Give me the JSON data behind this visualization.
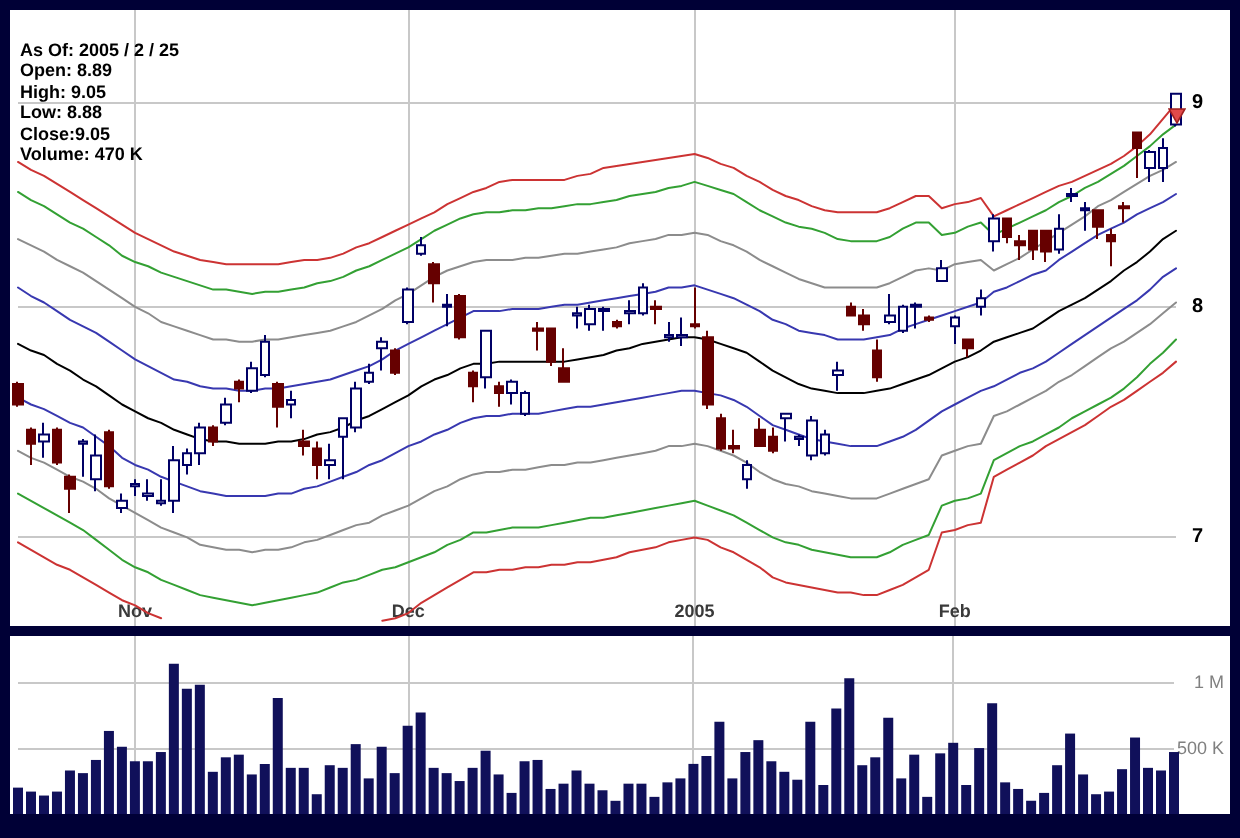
{
  "chart_data": [
    {
      "type": "candlestick",
      "categories": [
        null,
        null,
        null,
        null,
        null,
        null,
        null,
        null,
        null,
        "Nov",
        null,
        null,
        null,
        null,
        null,
        null,
        null,
        null,
        null,
        null,
        null,
        null,
        null,
        null,
        null,
        null,
        null,
        null,
        null,
        null,
        "Dec",
        null,
        null,
        null,
        null,
        null,
        null,
        null,
        null,
        null,
        null,
        null,
        null,
        null,
        null,
        null,
        null,
        null,
        null,
        null,
        null,
        null,
        "2005",
        null,
        null,
        null,
        null,
        null,
        null,
        null,
        null,
        null,
        null,
        null,
        null,
        null,
        null,
        null,
        null,
        null,
        null,
        null,
        "Feb",
        null,
        null,
        null,
        null,
        null,
        null,
        null,
        null,
        null,
        null,
        null,
        null,
        null,
        null,
        null,
        null,
        null
      ],
      "ohlc": [
        [
          7.65,
          7.66,
          7.55,
          7.56
        ],
        [
          7.45,
          7.46,
          7.3,
          7.39
        ],
        [
          7.4,
          7.48,
          7.33,
          7.43
        ],
        [
          7.45,
          7.46,
          7.3,
          7.31
        ],
        [
          7.25,
          7.26,
          7.1,
          7.2
        ],
        [
          7.39,
          7.41,
          7.25,
          7.4
        ],
        [
          7.24,
          7.43,
          7.19,
          7.34
        ],
        [
          7.44,
          7.45,
          7.2,
          7.21
        ],
        [
          7.12,
          7.18,
          7.1,
          7.15
        ],
        [
          7.21,
          7.24,
          7.17,
          7.22
        ],
        [
          7.17,
          7.24,
          7.15,
          7.18
        ],
        [
          7.14,
          7.24,
          7.13,
          7.15
        ],
        [
          7.15,
          7.38,
          7.1,
          7.32
        ],
        [
          7.3,
          7.37,
          7.26,
          7.35
        ],
        [
          7.35,
          7.48,
          7.3,
          7.46
        ],
        [
          7.46,
          7.47,
          7.38,
          7.4
        ],
        [
          7.48,
          7.59,
          7.47,
          7.56
        ],
        [
          7.66,
          7.67,
          7.57,
          7.63
        ],
        [
          7.62,
          7.75,
          7.61,
          7.72
        ],
        [
          7.69,
          7.87,
          7.68,
          7.84
        ],
        [
          7.65,
          7.66,
          7.46,
          7.55
        ],
        [
          7.56,
          7.62,
          7.5,
          7.58
        ],
        [
          7.4,
          7.45,
          7.34,
          7.38
        ],
        [
          7.37,
          7.4,
          7.24,
          7.3
        ],
        [
          7.3,
          7.39,
          7.24,
          7.32
        ],
        [
          7.42,
          7.5,
          7.24,
          7.5
        ],
        [
          7.46,
          7.66,
          7.44,
          7.63
        ],
        [
          7.66,
          7.74,
          7.65,
          7.7
        ],
        [
          7.81,
          7.86,
          7.71,
          7.84
        ],
        [
          7.8,
          7.81,
          7.69,
          7.7
        ],
        [
          7.93,
          8.09,
          7.92,
          8.08
        ],
        [
          8.25,
          8.33,
          8.24,
          8.29
        ],
        [
          8.2,
          8.21,
          8.02,
          8.11
        ],
        [
          8.0,
          8.06,
          7.91,
          8.01
        ],
        [
          8.05,
          8.06,
          7.85,
          7.86
        ],
        [
          7.7,
          7.71,
          7.57,
          7.64
        ],
        [
          7.68,
          7.89,
          7.63,
          7.89
        ],
        [
          7.64,
          7.66,
          7.55,
          7.61
        ],
        [
          7.61,
          7.67,
          7.56,
          7.66
        ],
        [
          7.52,
          7.62,
          7.51,
          7.61
        ],
        [
          7.9,
          7.93,
          7.8,
          7.89
        ],
        [
          7.9,
          7.9,
          7.73,
          7.75
        ],
        [
          7.72,
          7.81,
          7.66,
          7.66
        ],
        [
          7.96,
          8.0,
          7.9,
          7.97
        ],
        [
          7.92,
          8.01,
          7.89,
          7.99
        ],
        [
          7.98,
          8.0,
          7.89,
          7.99
        ],
        [
          7.93,
          7.94,
          7.9,
          7.91
        ],
        [
          7.97,
          8.03,
          7.92,
          7.98
        ],
        [
          7.97,
          8.11,
          7.96,
          8.09
        ],
        [
          8.0,
          8.03,
          7.92,
          7.99
        ],
        [
          7.86,
          7.93,
          7.84,
          7.87
        ],
        [
          7.86,
          7.95,
          7.82,
          7.87
        ],
        [
          7.92,
          8.09,
          7.9,
          7.91
        ],
        [
          7.86,
          7.89,
          7.54,
          7.56
        ],
        [
          7.5,
          7.52,
          7.36,
          7.37
        ],
        [
          7.38,
          7.45,
          7.35,
          7.37
        ],
        [
          7.24,
          7.32,
          7.2,
          7.3
        ],
        [
          7.45,
          7.5,
          7.38,
          7.38
        ],
        [
          7.42,
          7.46,
          7.35,
          7.36
        ],
        [
          7.5,
          7.52,
          7.4,
          7.52
        ],
        [
          7.41,
          7.43,
          7.38,
          7.42
        ],
        [
          7.34,
          7.51,
          7.32,
          7.49
        ],
        [
          7.35,
          7.45,
          7.34,
          7.43
        ],
        [
          7.69,
          7.75,
          7.62,
          7.71
        ],
        [
          8.0,
          8.02,
          7.96,
          7.96
        ],
        [
          7.96,
          7.99,
          7.89,
          7.92
        ],
        [
          7.8,
          7.85,
          7.66,
          7.68
        ],
        [
          7.93,
          8.06,
          7.92,
          7.96
        ],
        [
          7.89,
          8.01,
          7.88,
          8.0
        ],
        [
          8.0,
          8.02,
          7.9,
          8.01
        ],
        [
          7.95,
          7.96,
          7.93,
          7.94
        ],
        [
          8.12,
          8.22,
          8.12,
          8.18
        ],
        [
          7.91,
          7.96,
          7.83,
          7.95
        ],
        [
          7.85,
          7.85,
          7.77,
          7.81
        ],
        [
          8.0,
          8.08,
          7.96,
          8.04
        ],
        [
          8.31,
          8.44,
          8.26,
          8.42
        ],
        [
          8.42,
          8.42,
          8.3,
          8.33
        ],
        [
          8.31,
          8.34,
          8.22,
          8.29
        ],
        [
          8.36,
          8.36,
          8.22,
          8.27
        ],
        [
          8.36,
          8.36,
          8.21,
          8.26
        ],
        [
          8.27,
          8.44,
          8.25,
          8.37
        ],
        [
          8.53,
          8.57,
          8.5,
          8.54
        ],
        [
          8.46,
          8.5,
          8.36,
          8.47
        ],
        [
          8.46,
          8.46,
          8.32,
          8.38
        ],
        [
          8.34,
          8.37,
          8.19,
          8.31
        ],
        [
          8.48,
          8.5,
          8.4,
          8.47
        ],
        [
          8.85,
          8.85,
          8.62,
          8.77
        ],
        [
          8.67,
          8.76,
          8.6,
          8.75
        ],
        [
          8.67,
          8.82,
          8.6,
          8.77
        ],
        [
          8.89,
          9.05,
          8.88,
          9.05
        ]
      ],
      "colors": [
        "#660000",
        "#660000",
        "#000066",
        "#660000",
        "#660000",
        "#000066",
        "#000066",
        "#660000",
        "#000066",
        "#000066",
        "#000066",
        "#000066",
        "#000066",
        "#000066",
        "#000066",
        "#660000",
        "#000066",
        "#660000",
        "#000066",
        "#000066",
        "#660000",
        "#000066",
        "#660000",
        "#660000",
        "#000066",
        "#000066",
        "#000066",
        "#000066",
        "#000066",
        "#660000",
        "#000066",
        "#000066",
        "#660000",
        "#000066",
        "#660000",
        "#660000",
        "#000066",
        "#660000",
        "#000066",
        "#000066",
        "#660000",
        "#660000",
        "#660000",
        "#000066",
        "#000066",
        "#000066",
        "#660000",
        "#000066",
        "#000066",
        "#660000",
        "#000066",
        "#000066",
        "#660000",
        "#660000",
        "#660000",
        "#660000",
        "#000066",
        "#660000",
        "#660000",
        "#000066",
        "#000066",
        "#000066",
        "#000066",
        "#000066",
        "#660000",
        "#660000",
        "#660000",
        "#000066",
        "#000066",
        "#000066",
        "#660000",
        "#000066",
        "#000066",
        "#660000",
        "#000066",
        "#000066",
        "#660000",
        "#660000",
        "#660000",
        "#660000",
        "#000066",
        "#000066",
        "#000066",
        "#660000",
        "#660000",
        "#660000",
        "#660000",
        "#000066",
        "#000066",
        "#000066"
      ],
      "series": [
        {
          "type": "line",
          "color": "#cc3333",
          "values": [
            8.7,
            8.66,
            8.63,
            8.59,
            8.55,
            8.51,
            8.47,
            8.43,
            8.39,
            8.35,
            8.32,
            8.29,
            8.26,
            8.24,
            8.22,
            8.21,
            8.2,
            8.2,
            8.2,
            8.2,
            8.2,
            8.21,
            8.22,
            8.22,
            8.23,
            8.25,
            8.28,
            8.3,
            8.33,
            8.36,
            8.39,
            8.42,
            8.45,
            8.49,
            8.52,
            8.55,
            8.57,
            8.6,
            8.61,
            8.61,
            8.61,
            8.61,
            8.61,
            8.63,
            8.64,
            8.67,
            8.68,
            8.69,
            8.7,
            8.71,
            8.72,
            8.73,
            8.74,
            8.72,
            8.69,
            8.67,
            8.63,
            8.6,
            8.56,
            8.53,
            8.51,
            8.48,
            8.46,
            8.45,
            8.45,
            8.45,
            8.45,
            8.47,
            8.5,
            8.53,
            8.53,
            8.47,
            8.49,
            8.5,
            8.52,
            8.43,
            8.46,
            8.49,
            8.52,
            8.55,
            8.58,
            8.6,
            8.63,
            8.66,
            8.69,
            8.73,
            8.78,
            8.84,
            8.92,
            9.0
          ]
        },
        {
          "type": "line",
          "color": "#33a033",
          "values": [
            8.55,
            8.51,
            8.48,
            8.44,
            8.4,
            8.37,
            8.33,
            8.29,
            8.24,
            8.21,
            8.19,
            8.16,
            8.14,
            8.12,
            8.1,
            8.08,
            8.08,
            8.07,
            8.06,
            8.07,
            8.07,
            8.08,
            8.09,
            8.11,
            8.12,
            8.14,
            8.17,
            8.19,
            8.22,
            8.25,
            8.28,
            8.32,
            8.36,
            8.39,
            8.42,
            8.44,
            8.45,
            8.45,
            8.46,
            8.46,
            8.47,
            8.47,
            8.48,
            8.49,
            8.49,
            8.5,
            8.51,
            8.53,
            8.54,
            8.55,
            8.57,
            8.58,
            8.6,
            8.58,
            8.56,
            8.54,
            8.5,
            8.46,
            8.43,
            8.4,
            8.38,
            8.37,
            8.35,
            8.32,
            8.31,
            8.31,
            8.31,
            8.33,
            8.37,
            8.4,
            8.4,
            8.34,
            8.35,
            8.38,
            8.4,
            8.34,
            8.37,
            8.4,
            8.43,
            8.46,
            8.5,
            8.53,
            8.57,
            8.6,
            8.64,
            8.68,
            8.73,
            8.78,
            8.84,
            8.89
          ]
        },
        {
          "type": "line",
          "color": "#8c8c8c",
          "values": [
            8.32,
            8.29,
            8.26,
            8.22,
            8.19,
            8.16,
            8.12,
            8.08,
            8.04,
            8.0,
            7.97,
            7.93,
            7.91,
            7.89,
            7.87,
            7.85,
            7.85,
            7.84,
            7.84,
            7.85,
            7.85,
            7.86,
            7.87,
            7.88,
            7.89,
            7.91,
            7.93,
            7.96,
            7.99,
            8.03,
            8.06,
            8.1,
            8.14,
            8.17,
            8.19,
            8.21,
            8.22,
            8.22,
            8.22,
            8.23,
            8.23,
            8.24,
            8.25,
            8.25,
            8.26,
            8.27,
            8.28,
            8.3,
            8.31,
            8.32,
            8.34,
            8.34,
            8.35,
            8.34,
            8.31,
            8.29,
            8.26,
            8.22,
            8.19,
            8.16,
            8.13,
            8.11,
            8.09,
            8.09,
            8.09,
            8.09,
            8.09,
            8.11,
            8.14,
            8.17,
            8.18,
            8.17,
            8.2,
            8.21,
            8.22,
            8.17,
            8.2,
            8.23,
            8.27,
            8.31,
            8.35,
            8.39,
            8.43,
            8.48,
            8.51,
            8.55,
            8.59,
            8.63,
            8.66,
            8.7
          ]
        },
        {
          "type": "line",
          "color": "#3838b0",
          "values": [
            8.09,
            8.05,
            8.02,
            7.98,
            7.94,
            7.91,
            7.88,
            7.84,
            7.8,
            7.76,
            7.73,
            7.7,
            7.67,
            7.66,
            7.64,
            7.63,
            7.63,
            7.62,
            7.62,
            7.63,
            7.63,
            7.64,
            7.65,
            7.66,
            7.67,
            7.69,
            7.71,
            7.73,
            7.76,
            7.8,
            7.83,
            7.86,
            7.89,
            7.92,
            7.95,
            7.98,
            7.98,
            7.98,
            7.99,
            7.99,
            7.99,
            8.0,
            8.01,
            8.01,
            8.02,
            8.03,
            8.04,
            8.05,
            8.06,
            8.07,
            8.09,
            8.09,
            8.1,
            8.08,
            8.06,
            8.04,
            8.01,
            7.98,
            7.94,
            7.92,
            7.89,
            7.88,
            7.87,
            7.85,
            7.85,
            7.85,
            7.86,
            7.87,
            7.9,
            7.92,
            7.94,
            7.96,
            7.98,
            8.0,
            8.02,
            8.07,
            8.09,
            8.12,
            8.15,
            8.17,
            8.22,
            8.26,
            8.3,
            8.34,
            8.37,
            8.4,
            8.44,
            8.47,
            8.5,
            8.54
          ]
        },
        {
          "type": "line",
          "color": "#000000",
          "values": [
            7.83,
            7.8,
            7.78,
            7.74,
            7.71,
            7.67,
            7.64,
            7.6,
            7.56,
            7.53,
            7.5,
            7.48,
            7.45,
            7.43,
            7.41,
            7.4,
            7.4,
            7.39,
            7.39,
            7.39,
            7.4,
            7.4,
            7.41,
            7.43,
            7.44,
            7.46,
            7.49,
            7.51,
            7.54,
            7.57,
            7.6,
            7.64,
            7.67,
            7.69,
            7.72,
            7.74,
            7.74,
            7.75,
            7.75,
            7.75,
            7.75,
            7.75,
            7.75,
            7.76,
            7.77,
            7.78,
            7.8,
            7.81,
            7.83,
            7.84,
            7.85,
            7.86,
            7.86,
            7.85,
            7.83,
            7.81,
            7.79,
            7.75,
            7.71,
            7.68,
            7.65,
            7.63,
            7.62,
            7.61,
            7.61,
            7.61,
            7.62,
            7.63,
            7.65,
            7.67,
            7.69,
            7.72,
            7.75,
            7.77,
            7.8,
            7.84,
            7.86,
            7.88,
            7.9,
            7.94,
            7.98,
            8.01,
            8.04,
            8.08,
            8.12,
            8.17,
            8.21,
            8.26,
            8.32,
            8.36
          ]
        },
        {
          "type": "line",
          "color": "#3838b0",
          "values": [
            7.59,
            7.56,
            7.54,
            7.51,
            7.48,
            7.46,
            7.42,
            7.38,
            7.33,
            7.3,
            7.28,
            7.25,
            7.23,
            7.21,
            7.19,
            7.18,
            7.17,
            7.17,
            7.17,
            7.17,
            7.18,
            7.18,
            7.2,
            7.21,
            7.23,
            7.25,
            7.27,
            7.3,
            7.32,
            7.35,
            7.38,
            7.4,
            7.43,
            7.45,
            7.48,
            7.5,
            7.51,
            7.51,
            7.52,
            7.52,
            7.52,
            7.53,
            7.54,
            7.55,
            7.55,
            7.56,
            7.57,
            7.58,
            7.59,
            7.6,
            7.61,
            7.62,
            7.62,
            7.61,
            7.6,
            7.58,
            7.55,
            7.51,
            7.47,
            7.45,
            7.43,
            7.41,
            7.4,
            7.39,
            7.38,
            7.38,
            7.38,
            7.4,
            7.42,
            7.45,
            7.49,
            7.53,
            7.56,
            7.59,
            7.62,
            7.64,
            7.67,
            7.7,
            7.72,
            7.75,
            7.79,
            7.83,
            7.87,
            7.91,
            7.95,
            7.99,
            8.03,
            8.08,
            8.14,
            8.18
          ]
        },
        {
          "type": "line",
          "color": "#8c8c8c",
          "values": [
            7.36,
            7.33,
            7.31,
            7.28,
            7.25,
            7.23,
            7.2,
            7.16,
            7.13,
            7.1,
            7.07,
            7.04,
            7.02,
            7.0,
            6.97,
            6.96,
            6.95,
            6.95,
            6.94,
            6.95,
            6.95,
            6.96,
            6.98,
            6.99,
            7.01,
            7.03,
            7.05,
            7.06,
            7.09,
            7.11,
            7.13,
            7.16,
            7.19,
            7.21,
            7.24,
            7.26,
            7.27,
            7.27,
            7.28,
            7.28,
            7.29,
            7.3,
            7.3,
            7.31,
            7.31,
            7.32,
            7.33,
            7.34,
            7.35,
            7.36,
            7.38,
            7.38,
            7.39,
            7.38,
            7.36,
            7.34,
            7.31,
            7.27,
            7.24,
            7.22,
            7.21,
            7.19,
            7.18,
            7.17,
            7.16,
            7.16,
            7.16,
            7.18,
            7.2,
            7.22,
            7.24,
            7.34,
            7.36,
            7.38,
            7.39,
            7.51,
            7.53,
            7.56,
            7.59,
            7.62,
            7.66,
            7.69,
            7.73,
            7.77,
            7.81,
            7.84,
            7.88,
            7.92,
            7.97,
            8.02
          ]
        },
        {
          "type": "line",
          "color": "#33a033",
          "values": [
            7.18,
            7.15,
            7.12,
            7.09,
            7.06,
            7.03,
            6.99,
            6.95,
            6.91,
            6.88,
            6.86,
            6.83,
            6.81,
            6.79,
            6.77,
            6.76,
            6.75,
            6.74,
            6.73,
            6.74,
            6.75,
            6.76,
            6.77,
            6.78,
            6.8,
            6.82,
            6.83,
            6.85,
            6.87,
            6.88,
            6.9,
            6.92,
            6.94,
            6.97,
            6.99,
            7.02,
            7.02,
            7.03,
            7.04,
            7.04,
            7.04,
            7.05,
            7.06,
            7.07,
            7.08,
            7.08,
            7.09,
            7.1,
            7.11,
            7.12,
            7.13,
            7.14,
            7.15,
            7.13,
            7.11,
            7.09,
            7.06,
            7.03,
            7.0,
            6.98,
            6.97,
            6.95,
            6.94,
            6.93,
            6.92,
            6.92,
            6.92,
            6.94,
            6.97,
            6.99,
            7.01,
            7.13,
            7.15,
            7.16,
            7.18,
            7.32,
            7.35,
            7.38,
            7.4,
            7.43,
            7.46,
            7.5,
            7.53,
            7.56,
            7.59,
            7.63,
            7.68,
            7.74,
            7.79,
            7.85
          ]
        },
        {
          "type": "line",
          "color": "#cc3333",
          "values": [
            6.98,
            6.95,
            6.92,
            6.89,
            6.87,
            6.84,
            6.81,
            6.78,
            6.75,
            6.73,
            6.7,
            6.68,
            null,
            null,
            null,
            null,
            null,
            null,
            null,
            null,
            null,
            null,
            null,
            null,
            null,
            null,
            null,
            null,
            6.67,
            6.68,
            6.7,
            6.74,
            6.77,
            6.8,
            6.83,
            6.86,
            6.86,
            6.87,
            6.87,
            6.88,
            6.88,
            6.89,
            6.89,
            6.9,
            6.9,
            6.91,
            6.92,
            6.94,
            6.95,
            6.96,
            6.98,
            6.99,
            7.0,
            6.99,
            6.96,
            6.94,
            6.91,
            6.88,
            6.84,
            6.82,
            6.81,
            6.8,
            6.79,
            6.78,
            6.78,
            6.77,
            6.77,
            6.79,
            6.81,
            6.84,
            6.87,
            7.02,
            7.03,
            7.05,
            7.06,
            7.25,
            7.28,
            7.31,
            7.34,
            7.38,
            7.41,
            7.44,
            7.47,
            7.51,
            7.55,
            7.58,
            7.62,
            7.66,
            7.7,
            7.75
          ]
        }
      ],
      "log": "y",
      "ylim": [
        6.65,
        9.5
      ],
      "yticks": [
        7,
        8,
        9
      ],
      "grid": true,
      "marker": "none",
      "annotations": [
        "As Of: 2005 / 2 / 25",
        "Open: 8.89",
        "High: 9.05",
        "Low: 8.88",
        "Close:9.05",
        "Volume: 470 K"
      ]
    },
    {
      "type": "bar",
      "categories": [
        null,
        null,
        null,
        null,
        null,
        null,
        null,
        null,
        null,
        null,
        null,
        null,
        null,
        null,
        null,
        null,
        null,
        null,
        null,
        null,
        null,
        null,
        null,
        null,
        null,
        null,
        null,
        null,
        null,
        null,
        null,
        null,
        null,
        null,
        null,
        null,
        null,
        null,
        null,
        null,
        null,
        null,
        null,
        null,
        null,
        null,
        null,
        null,
        null,
        null,
        null,
        null,
        null,
        null,
        null,
        null,
        null,
        null,
        null,
        null,
        null,
        null,
        null,
        null,
        null,
        null,
        null,
        null,
        null,
        null,
        null,
        null,
        null,
        null,
        null,
        null,
        null,
        null,
        null,
        null,
        null,
        null,
        null,
        null,
        null,
        null,
        null,
        null,
        null,
        null
      ],
      "values": [
        200000,
        170000,
        140000,
        170000,
        330000,
        310000,
        410000,
        630000,
        510000,
        400000,
        400000,
        470000,
        1140000,
        950000,
        980000,
        320000,
        430000,
        450000,
        300000,
        380000,
        880000,
        350000,
        350000,
        150000,
        370000,
        350000,
        530000,
        270000,
        510000,
        310000,
        670000,
        770000,
        350000,
        310000,
        250000,
        350000,
        480000,
        300000,
        160000,
        400000,
        410000,
        190000,
        230000,
        330000,
        230000,
        180000,
        100000,
        230000,
        230000,
        130000,
        240000,
        270000,
        380000,
        440000,
        700000,
        270000,
        470000,
        560000,
        400000,
        320000,
        260000,
        700000,
        220000,
        800000,
        1030000,
        370000,
        430000,
        730000,
        270000,
        450000,
        130000,
        460000,
        540000,
        220000,
        500000,
        840000,
        240000,
        190000,
        100000,
        160000,
        370000,
        610000,
        300000,
        150000,
        170000,
        340000,
        580000,
        350000,
        330000,
        470000
      ],
      "color": "#10105a",
      "ylim": [
        0,
        1350000
      ],
      "yticks": [
        {
          "value": 500000,
          "label": "500 K"
        },
        {
          "value": 1000000,
          "label": "1 M"
        }
      ],
      "grid": true,
      "tick_labels": "y"
    }
  ]
}
